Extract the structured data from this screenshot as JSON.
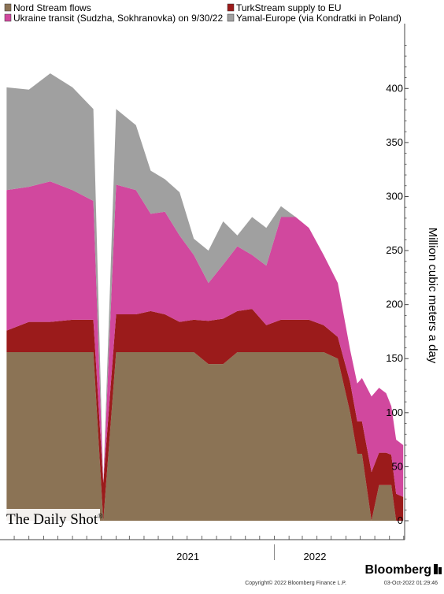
{
  "chart_data": {
    "type": "area",
    "stacked": true,
    "title": "",
    "xlabel": "",
    "ylabel": "Million cubic meters a day",
    "ylim": [
      0,
      460
    ],
    "yticks": [
      0,
      50,
      100,
      150,
      200,
      250,
      300,
      350,
      400
    ],
    "xlim": [
      "2020-06-01",
      "2022-10-03"
    ],
    "x_tick_labels": [
      {
        "label": "2021",
        "date": "2021-01-01"
      },
      {
        "label": "2022",
        "date": "2022-01-01"
      }
    ],
    "grid": false,
    "legend_position": "top",
    "x": [
      "2020-06-15",
      "2020-08-01",
      "2020-09-15",
      "2020-11-01",
      "2020-12-15",
      "2021-01-05",
      "2021-02-01",
      "2021-03-15",
      "2021-04-15",
      "2021-05-15",
      "2021-06-15",
      "2021-07-15",
      "2021-08-15",
      "2021-09-15",
      "2021-10-15",
      "2021-11-15",
      "2021-12-15",
      "2022-01-15",
      "2022-02-15",
      "2022-03-15",
      "2022-04-15",
      "2022-05-15",
      "2022-06-10",
      "2022-06-25",
      "2022-07-05",
      "2022-07-25",
      "2022-08-10",
      "2022-08-25",
      "2022-09-05",
      "2022-09-15",
      "2022-09-30"
    ],
    "series": [
      {
        "name": "Nord Stream flows",
        "color": "#8b7355",
        "values": [
          156,
          156,
          156,
          156,
          156,
          0,
          156,
          156,
          156,
          156,
          156,
          156,
          145,
          145,
          156,
          156,
          156,
          156,
          156,
          156,
          156,
          150,
          100,
          62,
          62,
          0,
          33,
          33,
          33,
          0,
          0
        ]
      },
      {
        "name": "TurkStream supply to EU",
        "color": "#9b1b1b",
        "values": [
          20,
          28,
          28,
          30,
          30,
          35,
          35,
          35,
          38,
          35,
          28,
          30,
          40,
          42,
          38,
          40,
          25,
          30,
          30,
          30,
          25,
          20,
          28,
          30,
          30,
          45,
          30,
          30,
          28,
          25,
          22
        ]
      },
      {
        "name": "Ukraine transit (Sudzha, Sokhranovka) on 9/30/22",
        "color": "#d1489e",
        "values": [
          130,
          125,
          130,
          120,
          110,
          0,
          120,
          115,
          90,
          95,
          80,
          60,
          35,
          50,
          60,
          50,
          55,
          95,
          95,
          85,
          65,
          50,
          30,
          35,
          40,
          70,
          60,
          55,
          45,
          50,
          48
        ]
      },
      {
        "name": "Yamal-Europe (via Kondratki in Poland)",
        "color": "#a0a0a0",
        "values": [
          95,
          90,
          100,
          95,
          85,
          0,
          70,
          60,
          40,
          30,
          40,
          15,
          30,
          40,
          10,
          35,
          35,
          10,
          0,
          0,
          0,
          0,
          0,
          0,
          0,
          0,
          0,
          0,
          0,
          0,
          0
        ]
      }
    ]
  },
  "watermark": "The Daily Shot",
  "watermark_mark": "®",
  "brand": "Bloomberg",
  "copyright": "Copyright© 2022 Bloomberg Finance L.P.",
  "timestamp": "03-Oct-2022 01:29:46",
  "colors": {
    "background": "#ffffff",
    "axis": "#444444"
  }
}
